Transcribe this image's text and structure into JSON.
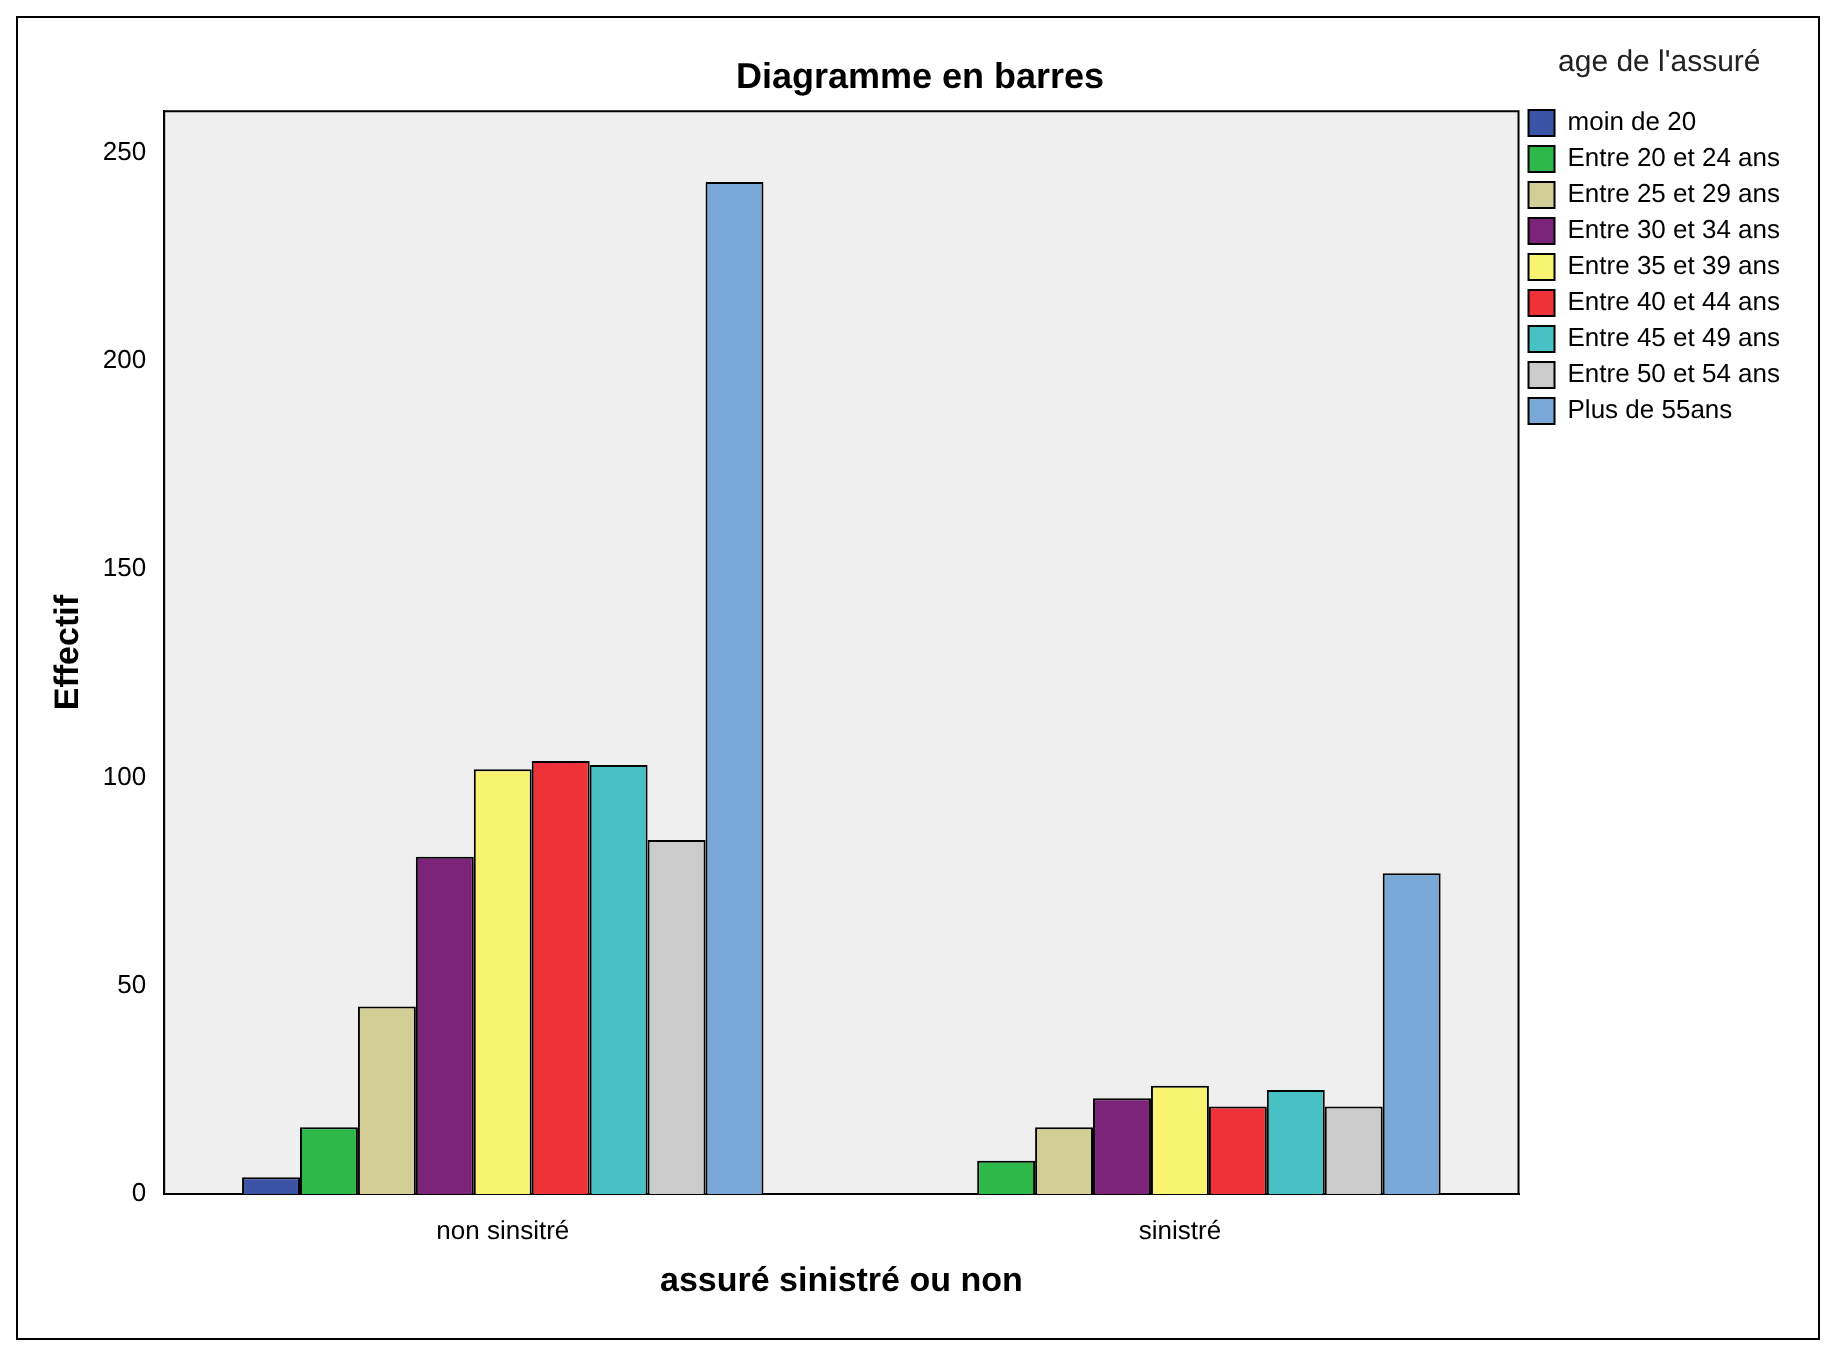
{
  "chart_data": {
    "type": "bar",
    "title": "Diagramme en barres",
    "xlabel": "assuré sinistré ou non",
    "ylabel": "Effectif",
    "legend_title": "age de l'assuré",
    "categories": [
      "non sinsitré",
      "sinistré"
    ],
    "series": [
      {
        "name": "moin de 20",
        "color": "#3b54a6",
        "values": [
          4,
          null
        ]
      },
      {
        "name": "Entre 20 et 24 ans",
        "color": "#2fb84a",
        "values": [
          16,
          8
        ]
      },
      {
        "name": "Entre 25 et 29 ans",
        "color": "#d3cd96",
        "values": [
          45,
          16
        ]
      },
      {
        "name": "Entre 30 et 34 ans",
        "color": "#7b2479",
        "values": [
          81,
          23
        ]
      },
      {
        "name": "Entre 35 et 39 ans",
        "color": "#f8f370",
        "values": [
          102,
          26
        ]
      },
      {
        "name": "Entre 40 et 44 ans",
        "color": "#ef3138",
        "values": [
          104,
          21
        ]
      },
      {
        "name": "Entre 45 et 49 ans",
        "color": "#48c1c5",
        "values": [
          103,
          25
        ]
      },
      {
        "name": "Entre 50 et 54 ans",
        "color": "#cbcbcb",
        "values": [
          85,
          21
        ]
      },
      {
        "name": "Plus de 55ans",
        "color": "#7aa8d6",
        "values": [
          243,
          77
        ]
      }
    ],
    "ylim": [
      0,
      260
    ],
    "yticks": [
      0,
      50,
      100,
      150,
      200,
      250
    ],
    "grid": false,
    "legend": "top right"
  }
}
